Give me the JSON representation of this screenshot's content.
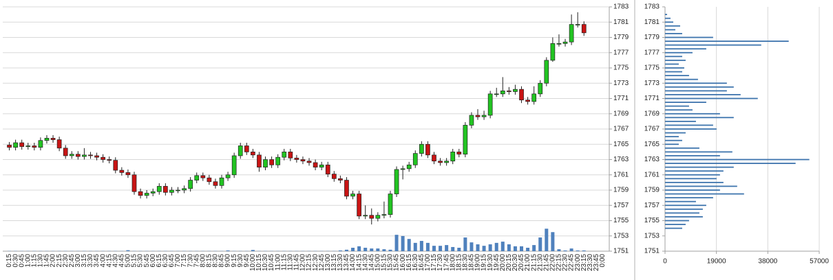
{
  "chart_data": [
    {
      "type": "candlestick",
      "categories": [
        "0:15",
        "0:30",
        "0:45",
        "1:00",
        "1:15",
        "1:30",
        "1:45",
        "2:00",
        "2:15",
        "2:30",
        "2:45",
        "3:00",
        "3:15",
        "3:30",
        "3:45",
        "4:00",
        "4:15",
        "4:30",
        "4:45",
        "5:00",
        "5:15",
        "5:30",
        "5:45",
        "6:00",
        "6:15",
        "6:30",
        "6:45",
        "7:00",
        "7:15",
        "7:30",
        "7:45",
        "8:00",
        "8:15",
        "8:30",
        "8:45",
        "9:00",
        "9:15",
        "9:30",
        "9:45",
        "10:00",
        "10:15",
        "10:30",
        "10:45",
        "11:00",
        "11:15",
        "11:30",
        "11:45",
        "12:00",
        "12:15",
        "12:30",
        "12:45",
        "13:00",
        "13:15",
        "13:30",
        "13:45",
        "14:00",
        "14:15",
        "14:30",
        "14:45",
        "15:00",
        "15:15",
        "15:30",
        "15:45",
        "16:00",
        "16:15",
        "16:30",
        "16:45",
        "17:00",
        "17:15",
        "17:30",
        "17:45",
        "18:00",
        "18:15",
        "18:30",
        "18:45",
        "19:00",
        "19:15",
        "19:30",
        "19:45",
        "20:00",
        "20:15",
        "20:30",
        "20:45",
        "21:00",
        "21:15",
        "21:30",
        "21:45",
        "22:00",
        "22:15",
        "22:30",
        "22:45",
        "23:00",
        "23:15",
        "23:30",
        "23:45",
        "0:00"
      ],
      "open": [
        1764.9,
        1764.6,
        1765.2,
        1764.7,
        1764.8,
        1764.6,
        1765.5,
        1765.8,
        1765.6,
        1764.5,
        1763.5,
        1763.7,
        1763.4,
        1763.6,
        1763.5,
        1763.3,
        1763.0,
        1762.9,
        1761.6,
        1761.3,
        1761.0,
        1758.8,
        1758.3,
        1758.6,
        1758.8,
        1759.5,
        1758.7,
        1759.0,
        1759.0,
        1759.2,
        1760.3,
        1760.9,
        1760.6,
        1760.1,
        1759.6,
        1760.6,
        1761.0,
        1763.5,
        1764.8,
        1764.0,
        1763.6,
        1762.0,
        1763.0,
        1762.3,
        1763.3,
        1764.0,
        1763.2,
        1763.0,
        1762.8,
        1762.6,
        1762.0,
        1762.3,
        1761.1,
        1760.5,
        1760.3,
        1758.2,
        1758.5,
        1755.6,
        1755.7,
        1755.3,
        1755.7,
        1755.8,
        1758.5,
        1761.7,
        1761.8,
        1762.3,
        1763.8,
        1765.0,
        1763.6,
        1762.8,
        1762.6,
        1762.8,
        1764.0,
        1763.7,
        1767.5,
        1768.8,
        1768.6,
        1768.8,
        1771.6,
        1771.6,
        1772.0,
        1771.9,
        1772.2,
        1770.8,
        1770.6,
        1771.6,
        1773.0,
        1776.0,
        1778.2,
        1778.2,
        1778.4,
        1780.7,
        1780.7,
        null,
        null,
        null
      ],
      "high": [
        1765.3,
        1765.6,
        1765.6,
        1765.2,
        1765.2,
        1765.9,
        1766.2,
        1766.2,
        1766.0,
        1764.9,
        1764.1,
        1764.1,
        1764.5,
        1764.0,
        1763.9,
        1763.7,
        1763.4,
        1763.3,
        1762.0,
        1761.7,
        1761.4,
        1759.2,
        1759.0,
        1759.2,
        1759.9,
        1759.9,
        1759.4,
        1759.4,
        1759.6,
        1760.7,
        1761.3,
        1761.3,
        1761.0,
        1760.5,
        1761.0,
        1761.4,
        1763.9,
        1765.2,
        1765.2,
        1764.4,
        1764.0,
        1763.4,
        1763.4,
        1763.7,
        1764.4,
        1764.4,
        1763.6,
        1763.4,
        1763.2,
        1763.0,
        1762.7,
        1762.7,
        1761.5,
        1760.9,
        1760.7,
        1758.9,
        1758.9,
        1757.0,
        1756.6,
        1756.1,
        1757.5,
        1758.9,
        1762.1,
        1762.2,
        1762.7,
        1764.2,
        1765.4,
        1765.4,
        1764.0,
        1763.2,
        1763.2,
        1764.4,
        1764.4,
        1767.9,
        1769.2,
        1769.6,
        1769.4,
        1772.0,
        1772.4,
        1773.8,
        1772.5,
        1772.8,
        1772.6,
        1771.2,
        1772.6,
        1773.4,
        1776.4,
        1779.0,
        1779.4,
        1778.8,
        1782.0,
        1782.3,
        1781.1,
        null,
        null,
        null
      ],
      "low": [
        1764.2,
        1764.2,
        1764.3,
        1764.3,
        1764.2,
        1764.2,
        1765.1,
        1765.2,
        1764.1,
        1763.1,
        1763.1,
        1763.0,
        1763.0,
        1763.1,
        1762.9,
        1762.6,
        1762.5,
        1761.2,
        1760.9,
        1760.6,
        1758.4,
        1757.9,
        1757.9,
        1758.2,
        1758.4,
        1758.3,
        1758.3,
        1758.6,
        1758.6,
        1758.8,
        1759.9,
        1760.2,
        1759.7,
        1759.2,
        1759.2,
        1760.2,
        1760.6,
        1763.1,
        1763.6,
        1763.2,
        1761.4,
        1761.6,
        1761.9,
        1761.9,
        1762.9,
        1762.8,
        1762.6,
        1762.4,
        1762.2,
        1761.6,
        1761.6,
        1760.7,
        1760.1,
        1759.9,
        1757.8,
        1757.8,
        1755.2,
        1755.2,
        1754.5,
        1754.9,
        1755.3,
        1755.4,
        1758.1,
        1760.4,
        1761.4,
        1761.9,
        1763.4,
        1763.2,
        1762.4,
        1762.2,
        1762.2,
        1762.4,
        1763.3,
        1763.3,
        1767.1,
        1768.2,
        1768.2,
        1768.4,
        1771.2,
        1771.2,
        1771.5,
        1771.5,
        1770.4,
        1770.2,
        1770.2,
        1771.2,
        1772.6,
        1775.8,
        1777.8,
        1777.8,
        1778.0,
        1780.3,
        1779.2,
        null,
        null,
        null
      ],
      "close": [
        1764.6,
        1765.2,
        1764.7,
        1764.8,
        1764.6,
        1765.5,
        1765.8,
        1765.6,
        1764.5,
        1763.5,
        1763.7,
        1763.4,
        1763.6,
        1763.5,
        1763.3,
        1763.0,
        1762.9,
        1761.6,
        1761.3,
        1761.0,
        1758.8,
        1758.3,
        1758.6,
        1758.8,
        1759.5,
        1758.7,
        1759.0,
        1759.0,
        1759.2,
        1760.3,
        1760.9,
        1760.6,
        1760.1,
        1759.6,
        1760.6,
        1761.0,
        1763.5,
        1764.8,
        1764.0,
        1763.6,
        1762.0,
        1763.0,
        1762.3,
        1763.3,
        1764.0,
        1763.2,
        1763.0,
        1762.8,
        1762.6,
        1762.0,
        1762.3,
        1761.1,
        1760.5,
        1760.3,
        1758.2,
        1758.5,
        1755.6,
        1755.7,
        1755.3,
        1755.7,
        1755.8,
        1758.5,
        1761.7,
        1761.8,
        1762.3,
        1763.8,
        1765.0,
        1763.6,
        1762.8,
        1762.6,
        1762.8,
        1764.0,
        1763.7,
        1767.5,
        1768.8,
        1768.6,
        1768.8,
        1771.6,
        1771.6,
        1772.0,
        1771.9,
        1772.2,
        1770.8,
        1770.6,
        1771.6,
        1773.0,
        1776.0,
        1778.2,
        1778.2,
        1778.4,
        1780.7,
        1780.7,
        1779.6,
        null,
        null,
        null
      ],
      "up_color": "#22c422",
      "down_color": "#c81414",
      "volume": {
        "color": "#4f81bd",
        "axis": "y2",
        "values": [
          80,
          80,
          80,
          80,
          80,
          80,
          80,
          80,
          80,
          80,
          80,
          80,
          80,
          80,
          80,
          80,
          80,
          80,
          80,
          400,
          80,
          80,
          80,
          80,
          80,
          80,
          80,
          80,
          80,
          80,
          80,
          80,
          80,
          80,
          80,
          300,
          80,
          80,
          80,
          500,
          80,
          80,
          80,
          80,
          80,
          80,
          80,
          80,
          80,
          80,
          80,
          80,
          80,
          300,
          600,
          1400,
          2000,
          1400,
          1100,
          1100,
          800,
          600,
          6700,
          6200,
          5000,
          3400,
          4200,
          3400,
          2200,
          2200,
          2500,
          1700,
          1400,
          5600,
          3600,
          2800,
          2200,
          2800,
          3400,
          3900,
          2800,
          2000,
          2000,
          1400,
          2500,
          5600,
          9200,
          7800,
          800,
          300,
          1100,
          300,
          300,
          null,
          null,
          null
        ]
      },
      "ylim": [
        1751,
        1783
      ],
      "yticks": [
        1751,
        1753,
        1755,
        1757,
        1759,
        1761,
        1763,
        1765,
        1767,
        1769,
        1771,
        1773,
        1775,
        1777,
        1779,
        1781,
        1783
      ],
      "y2lim": [
        0,
        100000
      ],
      "grid": true
    },
    {
      "type": "barh",
      "y": [
        1754,
        1754.5,
        1755,
        1755.5,
        1756,
        1756.5,
        1757,
        1757.5,
        1758,
        1758.5,
        1759,
        1759.5,
        1760,
        1760.5,
        1761,
        1761.5,
        1762,
        1762.5,
        1763,
        1763.5,
        1764,
        1764.5,
        1765,
        1765.5,
        1766,
        1766.5,
        1767,
        1767.5,
        1768,
        1768.5,
        1769,
        1769.5,
        1770,
        1770.5,
        1771,
        1771.5,
        1772,
        1772.5,
        1773,
        1773.5,
        1774,
        1774.5,
        1775,
        1775.5,
        1776,
        1776.5,
        1777,
        1777.5,
        1778,
        1778.5,
        1779,
        1779.5,
        1780,
        1780.5,
        1781,
        1781.5,
        1782
      ],
      "values": [
        6350,
        7620,
        8890,
        13970,
        12700,
        13970,
        15240,
        11430,
        17780,
        29210,
        20320,
        26670,
        21590,
        19050,
        20320,
        21590,
        25400,
        48260,
        53340,
        20320,
        24890,
        12700,
        5080,
        6350,
        5080,
        7620,
        19050,
        17780,
        11430,
        25400,
        20320,
        10160,
        8890,
        15240,
        34290,
        27940,
        22860,
        25400,
        22860,
        12190,
        8890,
        6350,
        7110,
        5080,
        7620,
        6350,
        10160,
        15240,
        35560,
        45720,
        17780,
        6350,
        3810,
        5590,
        3050,
        2030,
        760
      ],
      "color": "#3d74ad",
      "xlim": [
        0,
        57000
      ],
      "xticks": [
        0,
        19000,
        38000,
        57000
      ],
      "ylim": [
        1751,
        1783
      ],
      "yticks": [
        1751,
        1753,
        1755,
        1757,
        1759,
        1761,
        1763,
        1765,
        1767,
        1769,
        1771,
        1773,
        1775,
        1777,
        1779,
        1781,
        1783
      ],
      "grid": true
    }
  ]
}
